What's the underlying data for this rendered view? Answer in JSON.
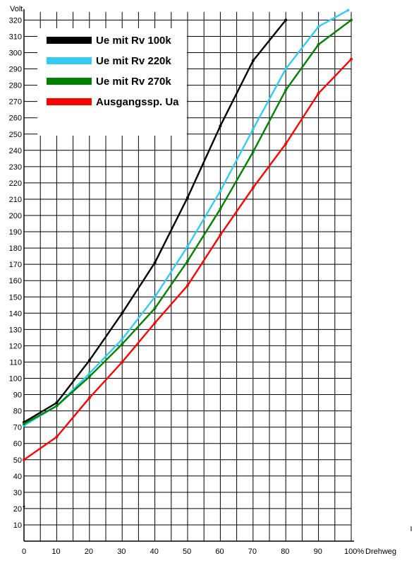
{
  "chart_data": {
    "type": "line",
    "title": "",
    "ylabel": "Volt",
    "xlabel": "Drehweg",
    "x_tick_labels": [
      "0",
      "10",
      "20",
      "30",
      "40",
      "50",
      "60",
      "70",
      "80",
      "90",
      "100%"
    ],
    "xlim": [
      0,
      100
    ],
    "ylim": [
      0,
      325
    ],
    "x_minor_step": 5,
    "y_step": 10,
    "grid": true,
    "legend_position": "top-left",
    "series": [
      {
        "name": "Ue mit Rv 100k",
        "color": "#000000",
        "x": [
          0,
          10,
          20,
          30,
          40,
          50,
          60,
          70,
          80
        ],
        "y": [
          73,
          85,
          111,
          140,
          171,
          211,
          255,
          295,
          320
        ]
      },
      {
        "name": "Ue mit Rv 220k",
        "color": "#33ccf0",
        "x": [
          0,
          10,
          20,
          30,
          40,
          50,
          60,
          70,
          80,
          90,
          99
        ],
        "y": [
          71,
          83,
          103,
          124,
          150,
          181,
          215,
          253,
          290,
          316,
          326
        ]
      },
      {
        "name": "Ue mit Rv 270k",
        "color": "#008000",
        "x": [
          0,
          10,
          20,
          30,
          40,
          50,
          60,
          70,
          80,
          90,
          100
        ],
        "y": [
          72,
          83,
          101,
          121,
          143,
          172,
          204,
          239,
          277,
          305,
          320
        ]
      },
      {
        "name": "Ausgangssp. Ua",
        "color": "#ff0000",
        "x": [
          0,
          10,
          20,
          30,
          40,
          50,
          60,
          70,
          80,
          90,
          100
        ],
        "y": [
          50,
          64,
          88,
          110,
          134,
          157,
          188,
          217,
          244,
          275,
          296
        ]
      }
    ]
  }
}
